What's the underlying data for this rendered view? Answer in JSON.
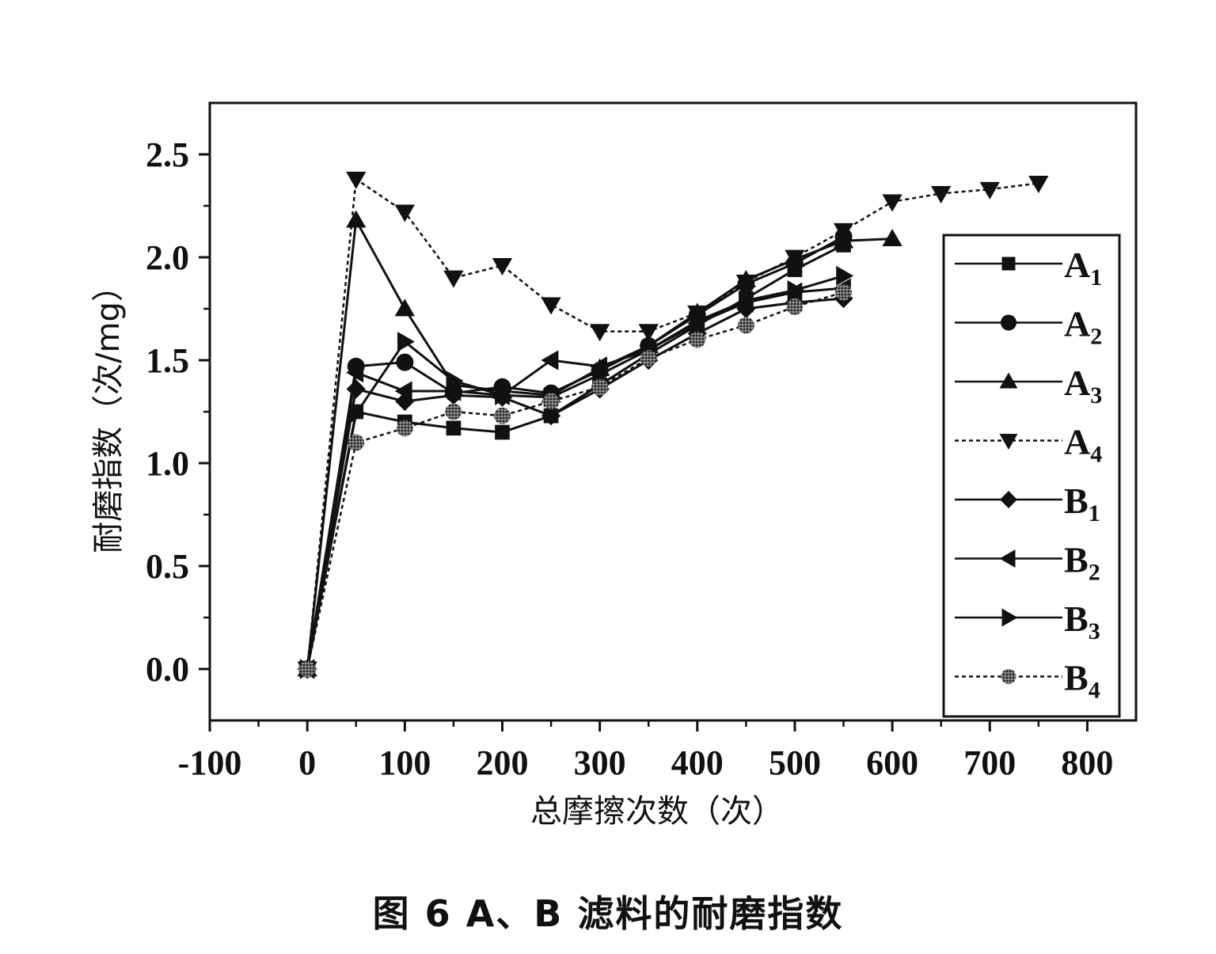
{
  "chart_data": {
    "type": "line",
    "title": "",
    "caption": "图 6 A、B 滤料的耐磨指数",
    "xlabel": "总摩擦次数（次）",
    "ylabel": "耐磨指数（次/mg）",
    "xlim": [
      -100,
      850
    ],
    "ylim": [
      -0.25,
      2.75
    ],
    "xticks": [
      -100,
      0,
      100,
      200,
      300,
      400,
      500,
      600,
      700,
      800
    ],
    "xtick_labels": [
      "-100",
      "0",
      "100",
      "200",
      "300",
      "400",
      "500",
      "600",
      "700",
      "800"
    ],
    "yticks": [
      0.0,
      0.5,
      1.0,
      1.5,
      2.0,
      2.5
    ],
    "ytick_labels": [
      "0.0",
      "0.5",
      "1.0",
      "1.5",
      "2.0",
      "2.5"
    ],
    "grid": false,
    "legend_position": "right-inside",
    "series": [
      {
        "name": "A1",
        "label_main": "A",
        "label_sub": "1",
        "marker": "square",
        "line": "solid",
        "x": [
          0,
          50,
          100,
          150,
          200,
          250,
          300,
          350,
          400,
          450,
          500,
          550
        ],
        "y": [
          0.0,
          1.25,
          1.2,
          1.17,
          1.15,
          1.23,
          1.38,
          1.53,
          1.67,
          1.8,
          1.94,
          2.06
        ]
      },
      {
        "name": "A2",
        "label_main": "A",
        "label_sub": "2",
        "marker": "circle",
        "line": "solid",
        "x": [
          0,
          50,
          100,
          150,
          200,
          250,
          300,
          350,
          400,
          450,
          500,
          550
        ],
        "y": [
          0.0,
          1.47,
          1.49,
          1.34,
          1.37,
          1.34,
          1.45,
          1.57,
          1.72,
          1.87,
          1.97,
          2.1
        ]
      },
      {
        "name": "A3",
        "label_main": "A",
        "label_sub": "3",
        "marker": "triangle-up",
        "line": "solid",
        "x": [
          0,
          50,
          100,
          150,
          200,
          250,
          300,
          350,
          400,
          450,
          500,
          550,
          600
        ],
        "y": [
          0.0,
          2.18,
          1.75,
          1.38,
          1.35,
          1.33,
          1.46,
          1.57,
          1.73,
          1.89,
          1.99,
          2.08,
          2.09
        ]
      },
      {
        "name": "A4",
        "label_main": "A",
        "label_sub": "4",
        "marker": "triangle-down",
        "line": "dotted",
        "x": [
          0,
          50,
          100,
          150,
          200,
          250,
          300,
          350,
          400,
          450,
          500,
          550,
          600,
          650,
          700,
          750
        ],
        "y": [
          0.0,
          2.38,
          2.22,
          1.9,
          1.96,
          1.77,
          1.64,
          1.64,
          1.73,
          1.88,
          2.0,
          2.13,
          2.27,
          2.31,
          2.33,
          2.36
        ]
      },
      {
        "name": "B1",
        "label_main": "B",
        "label_sub": "1",
        "marker": "diamond",
        "line": "solid",
        "x": [
          0,
          50,
          100,
          150,
          200,
          250,
          300,
          350,
          400,
          450,
          500,
          550
        ],
        "y": [
          0.0,
          1.36,
          1.3,
          1.33,
          1.32,
          1.23,
          1.36,
          1.5,
          1.63,
          1.75,
          1.78,
          1.8
        ]
      },
      {
        "name": "B2",
        "label_main": "B",
        "label_sub": "2",
        "marker": "triangle-left",
        "line": "solid",
        "x": [
          0,
          50,
          100,
          150,
          200,
          250,
          300,
          350,
          400,
          450,
          500,
          550
        ],
        "y": [
          0.0,
          1.44,
          1.35,
          1.35,
          1.33,
          1.5,
          1.47,
          1.55,
          1.68,
          1.78,
          1.83,
          1.85
        ]
      },
      {
        "name": "B3",
        "label_main": "B",
        "label_sub": "3",
        "marker": "triangle-right",
        "line": "solid",
        "x": [
          0,
          50,
          100,
          150,
          200,
          250,
          300,
          350,
          400,
          450,
          500,
          550
        ],
        "y": [
          0.0,
          1.24,
          1.59,
          1.4,
          1.33,
          1.32,
          1.43,
          1.55,
          1.69,
          1.79,
          1.84,
          1.91
        ]
      },
      {
        "name": "B4",
        "label_main": "B",
        "label_sub": "4",
        "marker": "hatched-circle",
        "line": "dotted",
        "x": [
          0,
          50,
          100,
          150,
          200,
          250,
          300,
          350,
          400,
          450,
          500,
          550
        ],
        "y": [
          0.0,
          1.1,
          1.17,
          1.25,
          1.23,
          1.3,
          1.37,
          1.51,
          1.6,
          1.67,
          1.76,
          1.83
        ]
      }
    ]
  }
}
